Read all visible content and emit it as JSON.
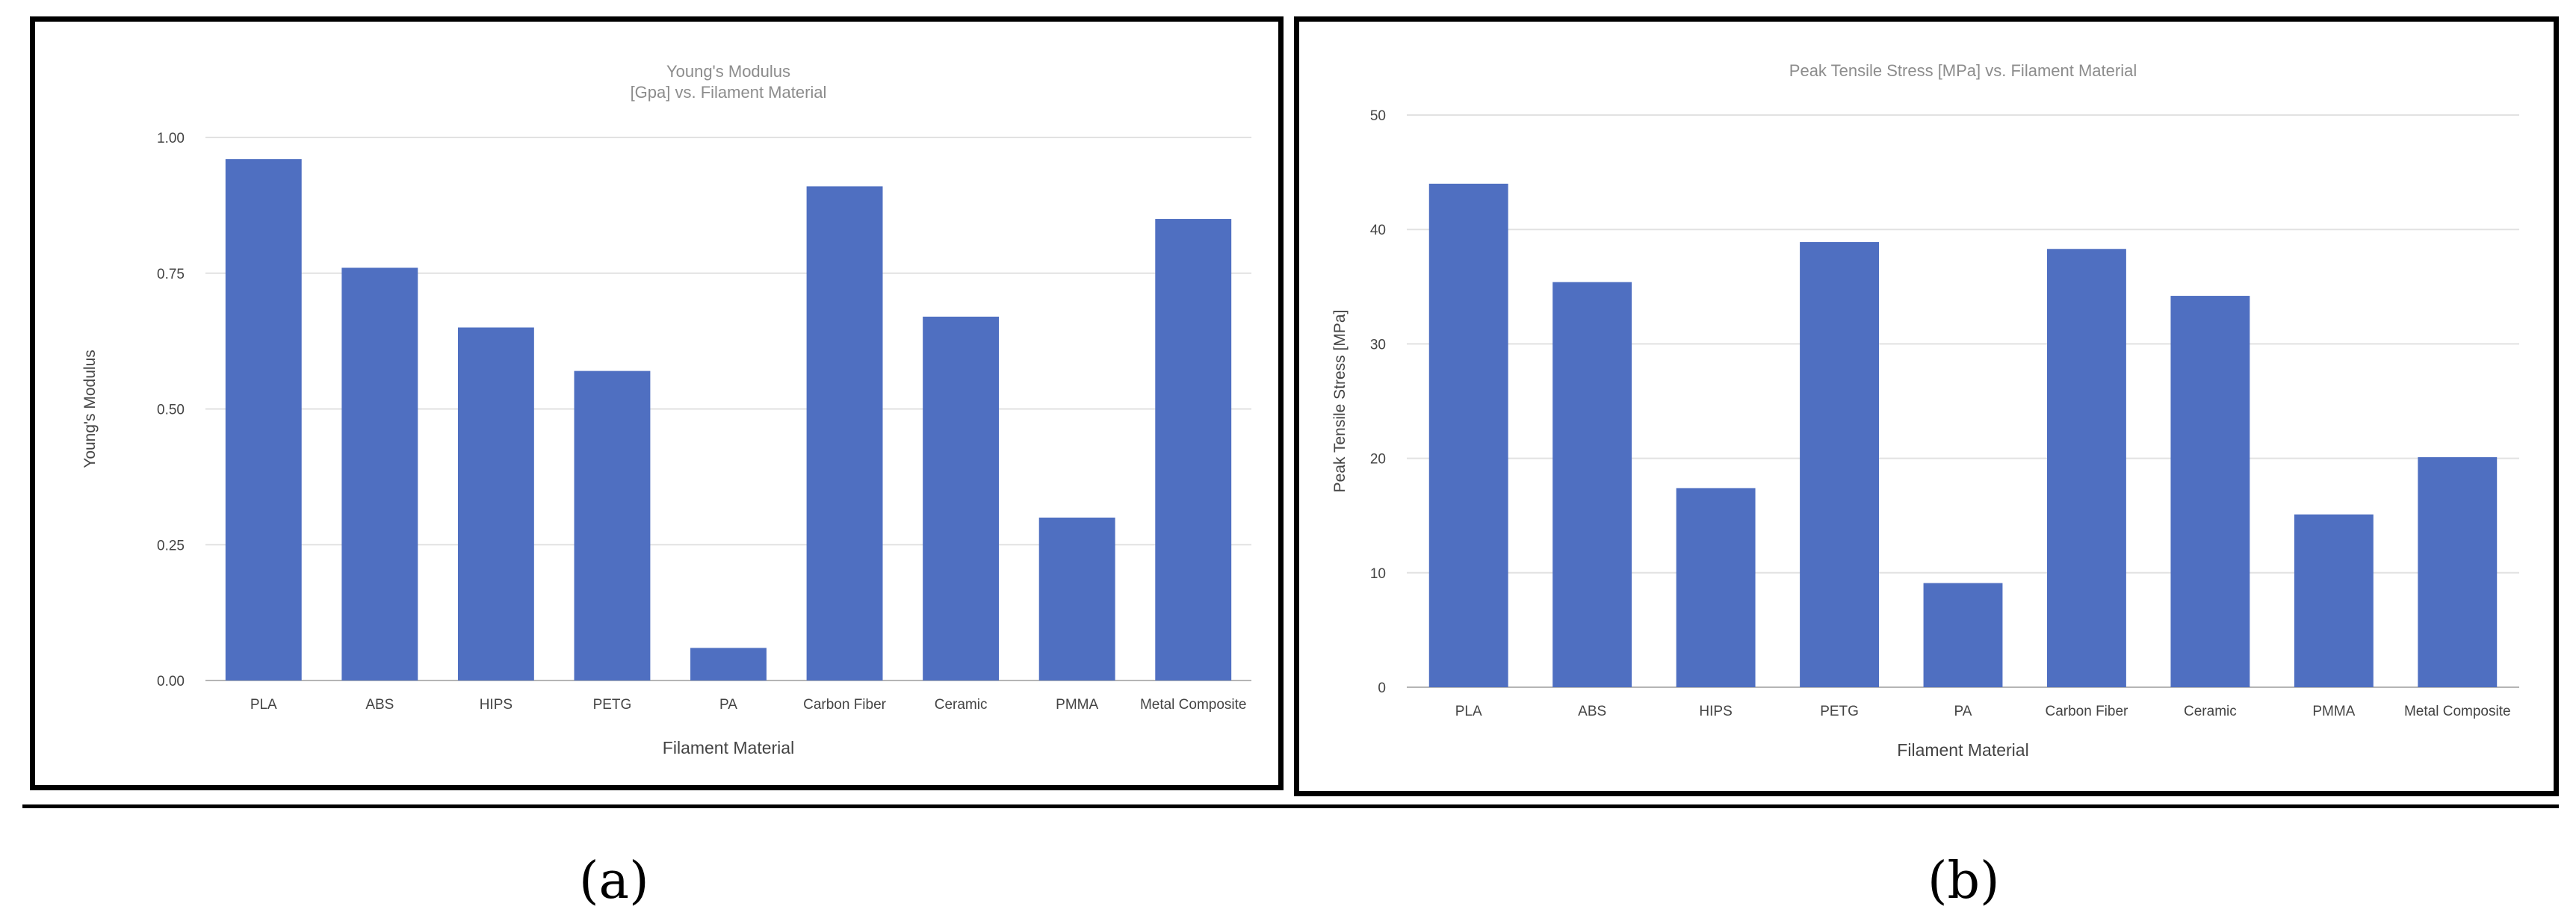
{
  "panel_labels": [
    "(a)",
    "(b)"
  ],
  "colors": {
    "bar": "#4f6fc1",
    "grid": "#e2e2e2",
    "axis": "#b5b5b5",
    "title": "#8c8c8c",
    "tick": "#444444"
  },
  "chart_data": [
    {
      "type": "bar",
      "title": "Young's Modulus",
      "subtitle": "[Gpa] vs. Filament Material",
      "xlabel": "Filament Material",
      "ylabel": "Young's Modulus",
      "categories": [
        "PLA",
        "ABS",
        "HIPS",
        "PETG",
        "PA",
        "Carbon Fiber",
        "Ceramic",
        "PMMA",
        "Metal Composite"
      ],
      "values": [
        0.96,
        0.76,
        0.65,
        0.57,
        0.06,
        0.91,
        0.67,
        0.3,
        0.85
      ],
      "ylim": [
        0,
        1
      ],
      "yticks": [
        "0.00",
        "0.25",
        "0.50",
        "0.75",
        "1.00"
      ],
      "grid": true,
      "legend": "none"
    },
    {
      "type": "bar",
      "title": "Peak Tensile Stress [MPa] vs. Filament Material",
      "xlabel": "Filament Material",
      "ylabel": "Peak Tensile Stress [MPa]",
      "categories": [
        "PLA",
        "ABS",
        "HIPS",
        "PETG",
        "PA",
        "Carbon Fiber",
        "Ceramic",
        "PMMA",
        "Metal Composite"
      ],
      "values": [
        44.0,
        35.4,
        17.4,
        38.9,
        9.1,
        38.3,
        34.2,
        15.1,
        20.1
      ],
      "ylim": [
        0,
        50
      ],
      "yticks": [
        "0",
        "10",
        "20",
        "30",
        "40",
        "50"
      ],
      "grid": true,
      "legend": "none"
    }
  ]
}
